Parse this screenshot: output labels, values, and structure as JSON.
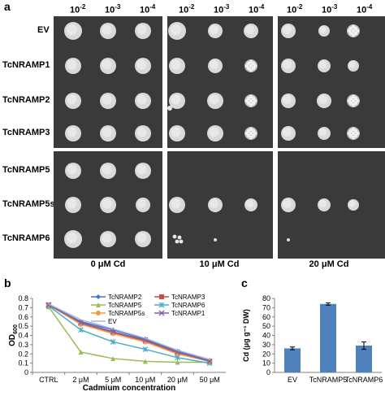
{
  "figure": {
    "panel_a": {
      "letter": "a",
      "dilutions": [
        "10",
        "-2",
        "10",
        "-3",
        "10",
        "-4"
      ],
      "dilution_labels": [
        {
          "base": "10",
          "exp": "-2"
        },
        {
          "base": "10",
          "exp": "-3"
        },
        {
          "base": "10",
          "exp": "-4"
        }
      ],
      "strains": [
        "EV",
        "TcNRAMP1",
        "TcNRAMP2",
        "TcNRAMP3",
        "TcNRAMP5",
        "TcNRAMP5s",
        "TcNRAMP6"
      ],
      "conditions": [
        "0 μM Cd",
        "10 μM Cd",
        "20 μM Cd"
      ]
    },
    "panel_b": {
      "letter": "b"
    },
    "panel_c": {
      "letter": "c"
    }
  },
  "chart_data": [
    {
      "type": "line",
      "categories": [
        "CTRL",
        "2 μM",
        "5 μM",
        "10 μM",
        "20 μM",
        "50 μM"
      ],
      "xlabel": "Cadmium concentration",
      "ylabel_base": "OD",
      "ylabel_sub": "600",
      "ylim": [
        0,
        0.8
      ],
      "yticks": [
        "0",
        "0.1",
        "0.2",
        "0.3",
        "0.4",
        "0.5",
        "0.6",
        "0.7",
        "0.8"
      ],
      "legend_position": "top-right",
      "series": [
        {
          "name": "TcNRAMP2",
          "color": "#4472c4",
          "marker": "diamond",
          "values": [
            0.73,
            0.55,
            0.46,
            0.36,
            0.23,
            0.13
          ]
        },
        {
          "name": "TcNRAMP3",
          "color": "#c0504d",
          "marker": "square",
          "values": [
            0.73,
            0.53,
            0.43,
            0.34,
            0.21,
            0.12
          ]
        },
        {
          "name": "TcNRAMP5",
          "color": "#9bbb59",
          "marker": "triangle",
          "values": [
            0.71,
            0.22,
            0.15,
            0.12,
            0.11,
            0.11
          ]
        },
        {
          "name": "TcNRAMP6",
          "color": "#4bacc6",
          "marker": "star",
          "values": [
            0.72,
            0.46,
            0.33,
            0.25,
            0.16,
            0.1
          ]
        },
        {
          "name": "TcNRAMP5s",
          "color": "#f79646",
          "marker": "circle",
          "values": [
            0.73,
            0.52,
            0.42,
            0.33,
            0.2,
            0.12
          ]
        },
        {
          "name": "TcNRAMP1",
          "color": "#8064a2",
          "marker": "x",
          "values": [
            0.73,
            0.54,
            0.44,
            0.35,
            0.22,
            0.12
          ]
        },
        {
          "name": "EV",
          "color": "#a6b7dd",
          "marker": "none",
          "values": [
            0.74,
            0.57,
            0.47,
            0.37,
            0.24,
            0.14
          ]
        }
      ]
    },
    {
      "type": "bar",
      "categories": [
        "EV",
        "TcNRAMP5",
        "TcNRAMP6"
      ],
      "values": [
        26,
        74,
        29
      ],
      "errors": [
        1.5,
        1.2,
        4
      ],
      "color": "#4f81bd",
      "ylabel": "Cd (μg g⁻¹ DW)",
      "ylim": [
        0,
        80
      ],
      "yticks": [
        "0",
        "10",
        "20",
        "30",
        "40",
        "50",
        "60",
        "70",
        "80"
      ]
    }
  ]
}
